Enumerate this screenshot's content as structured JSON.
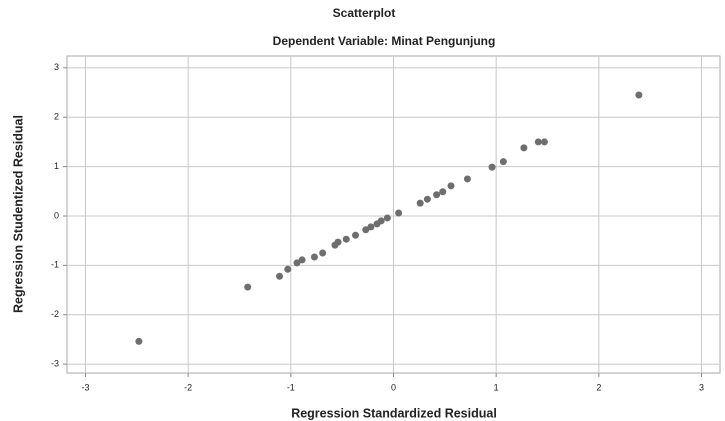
{
  "chart_data": {
    "type": "scatter",
    "title": "Scatterplot",
    "subtitle": "Dependent Variable: Minat Pengunjung",
    "x_label": "Regression Standardized Residual",
    "y_label": "Regression Studentized Residual",
    "x": [
      -2.48,
      -1.42,
      -1.11,
      -1.03,
      -0.94,
      -0.89,
      -0.77,
      -0.69,
      -0.57,
      -0.54,
      -0.46,
      -0.37,
      -0.27,
      -0.22,
      -0.16,
      -0.12,
      -0.06,
      0.05,
      0.26,
      0.33,
      0.42,
      0.48,
      0.56,
      0.72,
      0.96,
      1.07,
      1.27,
      1.41,
      1.47,
      2.39
    ],
    "values": [
      -2.54,
      -1.44,
      -1.22,
      -1.08,
      -0.95,
      -0.89,
      -0.83,
      -0.75,
      -0.59,
      -0.53,
      -0.47,
      -0.39,
      -0.28,
      -0.22,
      -0.16,
      -0.1,
      -0.04,
      0.06,
      0.26,
      0.34,
      0.43,
      0.49,
      0.61,
      0.75,
      0.99,
      1.1,
      1.38,
      1.5,
      1.5,
      2.45
    ],
    "color": "#6e6e6e",
    "xlim": [
      -3.18,
      3.18
    ],
    "xticks": [
      -3,
      -2,
      -1,
      0,
      1,
      2,
      3
    ],
    "ylim": [
      -3.18,
      3.24
    ],
    "yticks": [
      -3,
      -2,
      -1,
      0,
      1,
      2,
      3
    ],
    "grid": true
  }
}
